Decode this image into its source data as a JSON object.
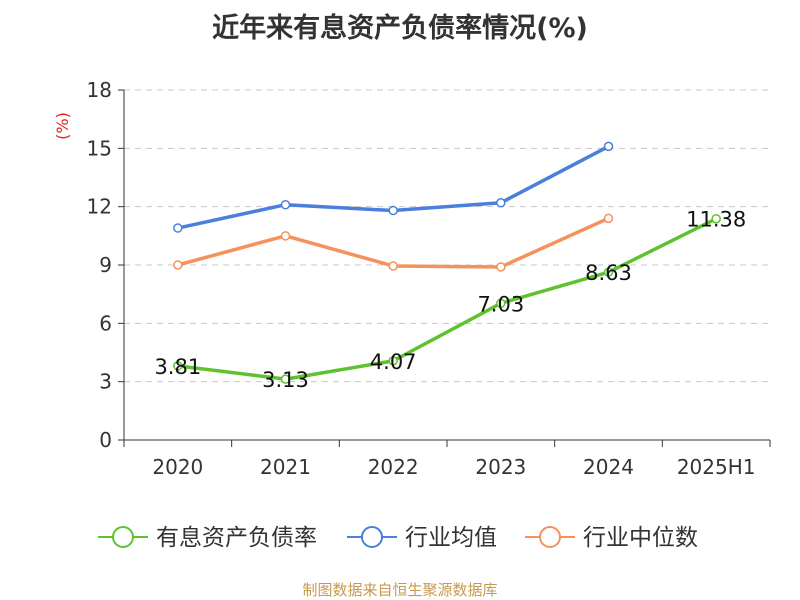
{
  "title": "近年来有息资产负债率情况(%)",
  "footer": "制图数据来自恒生聚源数据库",
  "chart_data": {
    "type": "line",
    "title": "近年来有息资产负债率情况(%)",
    "ylabel": "(%)",
    "xlabel": "",
    "categories": [
      "2020",
      "2021",
      "2022",
      "2023",
      "2024",
      "2025H1"
    ],
    "ylim": [
      0,
      18
    ],
    "yticks": [
      0,
      3,
      6,
      9,
      12,
      15,
      18
    ],
    "grid": true,
    "legend_position": "bottom",
    "series": [
      {
        "name": "有息资产负债率",
        "color": "#5ec22f",
        "values": [
          3.81,
          3.13,
          4.07,
          7.03,
          8.63,
          11.38
        ],
        "labels": [
          "3.81",
          "3.13",
          "4.07",
          "7.03",
          "8.63",
          "11.38"
        ]
      },
      {
        "name": "行业均值",
        "color": "#4a7fdc",
        "values": [
          10.9,
          12.1,
          11.8,
          12.2,
          15.1,
          null
        ]
      },
      {
        "name": "行业中位数",
        "color": "#f5915a",
        "values": [
          9.0,
          10.5,
          8.95,
          8.9,
          11.4,
          null
        ]
      }
    ]
  }
}
